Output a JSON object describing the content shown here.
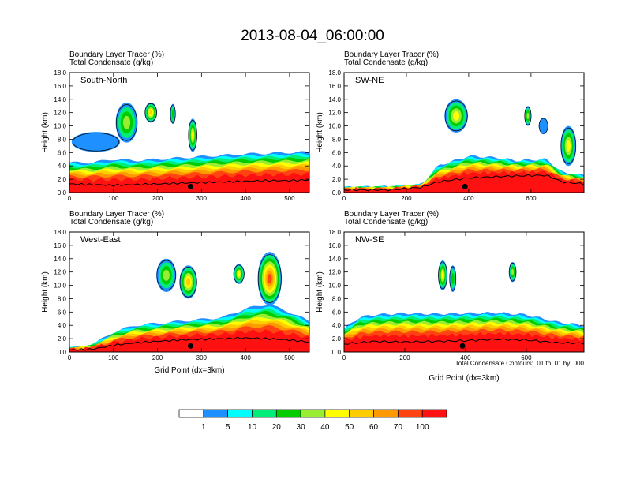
{
  "figure": {
    "title": "2013-08-04_06:00:00",
    "xlabel": "Grid Point (dx=3km)",
    "contour_note": "Total Condensate Contours: .01 to .01 by .000"
  },
  "chart_data": [
    {
      "type": "heatmap",
      "panel": "South-North",
      "header_line1": "Boundary Layer Tracer   (%)",
      "header_line2": "Total Condensate   (g/kg)",
      "ylabel": "Height (km)",
      "xlim": [
        0,
        545
      ],
      "ylim": [
        0,
        18
      ],
      "xticks": [
        "0",
        "100",
        "200",
        "300",
        "400",
        "500"
      ],
      "xtick_values": [
        0,
        100,
        200,
        300,
        400,
        500
      ],
      "yticks": [
        "0.0",
        "2.0",
        "4.0",
        "6.0",
        "8.0",
        "10.0",
        "12.0",
        "14.0",
        "16.0",
        "18.0"
      ],
      "marker_x": 275,
      "terrain_km": [
        [
          0,
          1.3
        ],
        [
          50,
          1.2
        ],
        [
          100,
          1.1
        ],
        [
          150,
          1.2
        ],
        [
          200,
          1.3
        ],
        [
          250,
          1.4
        ],
        [
          300,
          1.5
        ],
        [
          350,
          1.6
        ],
        [
          400,
          1.7
        ],
        [
          450,
          1.8
        ],
        [
          500,
          1.8
        ],
        [
          545,
          1.9
        ]
      ],
      "bl_top_km": [
        [
          0,
          4.5
        ],
        [
          50,
          4.5
        ],
        [
          100,
          5.0
        ],
        [
          150,
          4.8
        ],
        [
          200,
          5.0
        ],
        [
          250,
          5.2
        ],
        [
          300,
          5.4
        ],
        [
          350,
          5.6
        ],
        [
          400,
          5.8
        ],
        [
          450,
          5.9
        ],
        [
          500,
          6.0
        ],
        [
          545,
          6.1
        ]
      ],
      "clouds": [
        {
          "x": 130,
          "z": 10.5,
          "w": 50,
          "h": 6,
          "value": 30
        },
        {
          "x": 185,
          "z": 12.0,
          "w": 28,
          "h": 3,
          "value": 50
        },
        {
          "x": 235,
          "z": 11.8,
          "w": 12,
          "h": 3,
          "value": 20
        },
        {
          "x": 280,
          "z": 8.6,
          "w": 20,
          "h": 5,
          "value": 40
        },
        {
          "x": 60,
          "z": 7.6,
          "w": 110,
          "h": 3,
          "value": 5
        }
      ]
    },
    {
      "type": "heatmap",
      "panel": "SW-NE",
      "header_line1": "Boundary Layer Tracer   (%)",
      "header_line2": "Total Condensate   (g/kg)",
      "ylabel": "Height (km)",
      "xlim": [
        0,
        770
      ],
      "ylim": [
        0,
        18
      ],
      "xticks": [
        "0",
        "200",
        "400",
        "600"
      ],
      "xtick_values": [
        0,
        200,
        400,
        600
      ],
      "yticks": [
        "0.0",
        "2.0",
        "4.0",
        "6.0",
        "8.0",
        "10.0",
        "12.0",
        "14.0",
        "16.0",
        "18.0"
      ],
      "marker_x": 388,
      "terrain_km": [
        [
          0,
          0.4
        ],
        [
          150,
          0.4
        ],
        [
          250,
          0.8
        ],
        [
          300,
          1.6
        ],
        [
          400,
          2.2
        ],
        [
          500,
          2.4
        ],
        [
          550,
          2.5
        ],
        [
          650,
          2.6
        ],
        [
          700,
          1.6
        ],
        [
          770,
          1.3
        ]
      ],
      "bl_top_km": [
        [
          0,
          0.8
        ],
        [
          150,
          0.9
        ],
        [
          250,
          1.2
        ],
        [
          300,
          4.0
        ],
        [
          400,
          5.5
        ],
        [
          500,
          5.2
        ],
        [
          550,
          4.8
        ],
        [
          650,
          5.0
        ],
        [
          700,
          3.0
        ],
        [
          770,
          2.6
        ]
      ],
      "clouds": [
        {
          "x": 360,
          "z": 11.5,
          "w": 75,
          "h": 5,
          "value": 40
        },
        {
          "x": 590,
          "z": 11.5,
          "w": 22,
          "h": 3,
          "value": 30
        },
        {
          "x": 640,
          "z": 10.0,
          "w": 30,
          "h": 2.5,
          "value": 5
        },
        {
          "x": 720,
          "z": 7.0,
          "w": 50,
          "h": 6,
          "value": 40
        }
      ]
    },
    {
      "type": "heatmap",
      "panel": "West-East",
      "header_line1": "Boundary Layer Tracer   (%)",
      "header_line2": "Total Condensate   (g/kg)",
      "ylabel": "Height (km)",
      "xlim": [
        0,
        545
      ],
      "ylim": [
        0,
        18
      ],
      "xticks": [
        "0",
        "100",
        "200",
        "300",
        "400",
        "500"
      ],
      "xtick_values": [
        0,
        100,
        200,
        300,
        400,
        500
      ],
      "yticks": [
        "0.0",
        "2.0",
        "4.0",
        "6.0",
        "8.0",
        "10.0",
        "12.0",
        "14.0",
        "16.0",
        "18.0"
      ],
      "marker_x": 275,
      "terrain_km": [
        [
          0,
          0.3
        ],
        [
          50,
          0.4
        ],
        [
          100,
          1.0
        ],
        [
          150,
          1.4
        ],
        [
          200,
          1.6
        ],
        [
          250,
          1.8
        ],
        [
          300,
          1.9
        ],
        [
          350,
          2.0
        ],
        [
          400,
          2.1
        ],
        [
          450,
          2.0
        ],
        [
          500,
          1.8
        ],
        [
          545,
          1.5
        ]
      ],
      "bl_top_km": [
        [
          0,
          0.6
        ],
        [
          50,
          1.0
        ],
        [
          100,
          3.0
        ],
        [
          150,
          4.0
        ],
        [
          200,
          4.3
        ],
        [
          250,
          4.6
        ],
        [
          300,
          4.9
        ],
        [
          350,
          5.2
        ],
        [
          400,
          6.5
        ],
        [
          450,
          7.2
        ],
        [
          500,
          6.0
        ],
        [
          545,
          4.6
        ]
      ],
      "clouds": [
        {
          "x": 220,
          "z": 11.5,
          "w": 45,
          "h": 5,
          "value": 30
        },
        {
          "x": 270,
          "z": 10.5,
          "w": 40,
          "h": 5,
          "value": 50
        },
        {
          "x": 455,
          "z": 11.0,
          "w": 55,
          "h": 8,
          "value": 70
        },
        {
          "x": 385,
          "z": 11.7,
          "w": 25,
          "h": 3,
          "value": 40
        }
      ]
    },
    {
      "type": "heatmap",
      "panel": "NW-SE",
      "header_line1": "Boundary Layer Tracer   (%)",
      "header_line2": "Total Condensate   (g/kg)",
      "ylabel": "Height (km)",
      "xlim": [
        0,
        790
      ],
      "ylim": [
        0,
        18
      ],
      "xticks": [
        "0",
        "200",
        "400",
        "600"
      ],
      "xtick_values": [
        0,
        200,
        400,
        600
      ],
      "yticks": [
        "0.0",
        "2.0",
        "4.0",
        "6.0",
        "8.0",
        "10.0",
        "12.0",
        "14.0",
        "16.0",
        "18.0"
      ],
      "marker_x": 390,
      "terrain_km": [
        [
          0,
          1.2
        ],
        [
          100,
          1.6
        ],
        [
          200,
          1.5
        ],
        [
          300,
          1.6
        ],
        [
          400,
          1.7
        ],
        [
          500,
          1.9
        ],
        [
          600,
          1.8
        ],
        [
          700,
          1.4
        ],
        [
          790,
          1.3
        ]
      ],
      "bl_top_km": [
        [
          0,
          3.5
        ],
        [
          50,
          5.2
        ],
        [
          100,
          5.6
        ],
        [
          200,
          5.8
        ],
        [
          300,
          5.7
        ],
        [
          400,
          5.8
        ],
        [
          500,
          5.9
        ],
        [
          600,
          5.6
        ],
        [
          700,
          4.5
        ],
        [
          790,
          4.0
        ]
      ],
      "clouds": [
        {
          "x": 325,
          "z": 11.5,
          "w": 30,
          "h": 4.5,
          "value": 40
        },
        {
          "x": 358,
          "z": 11.0,
          "w": 22,
          "h": 4,
          "value": 20
        },
        {
          "x": 555,
          "z": 12.0,
          "w": 24,
          "h": 3,
          "value": 30
        }
      ]
    }
  ],
  "colorbar": {
    "labels": [
      "1",
      "5",
      "10",
      "20",
      "30",
      "40",
      "50",
      "60",
      "70",
      "100"
    ],
    "colors": [
      "#ffffff",
      "#1e90ff",
      "#00ffff",
      "#00ee77",
      "#00cc00",
      "#99ee33",
      "#ffff00",
      "#ffcc00",
      "#ff9900",
      "#ff4411",
      "#ff1111"
    ]
  }
}
